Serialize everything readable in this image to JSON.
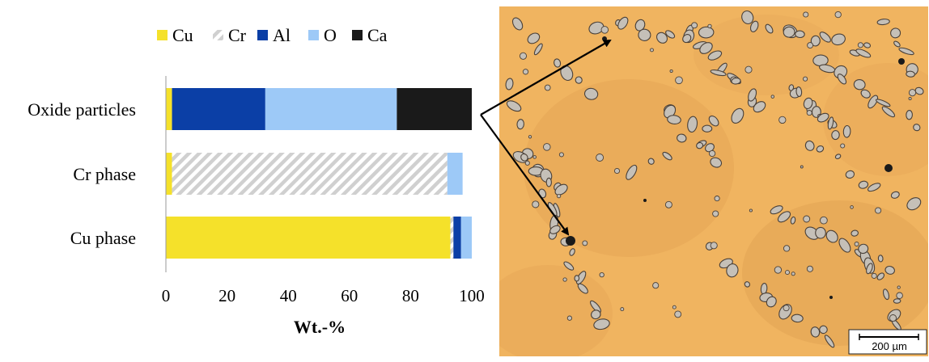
{
  "chart_data": {
    "type": "bar",
    "orientation": "horizontal",
    "stacked": true,
    "categories": [
      "Oxide particles",
      "Cr phase",
      "Cu phase"
    ],
    "series": [
      {
        "name": "Cu",
        "color": "#f5e12a",
        "pattern": "solid",
        "values": [
          2,
          2,
          93
        ]
      },
      {
        "name": "Cr",
        "color": "#d0d0d0",
        "pattern": "diagonal-hatch",
        "values": [
          0,
          90,
          1
        ]
      },
      {
        "name": "Al",
        "color": "#0b3fa6",
        "pattern": "solid",
        "values": [
          30.5,
          0,
          2.5
        ]
      },
      {
        "name": "O",
        "color": "#9dc9f7",
        "pattern": "solid",
        "values": [
          43,
          5,
          3.5
        ]
      },
      {
        "name": "Ca",
        "color": "#1a1a1a",
        "pattern": "solid",
        "values": [
          24.5,
          0,
          0
        ]
      }
    ],
    "xlabel": "Wt.-%",
    "ylabel": "",
    "xlim": [
      0,
      100
    ],
    "xticks": [
      "0",
      "20",
      "40",
      "60",
      "80",
      "100"
    ],
    "grid": false,
    "legend_position": "top"
  },
  "micrograph": {
    "scale_bar_label": "200 µm",
    "background_color": "#f0b460",
    "phase_color": "#c5c0b8",
    "outline_color": "#4a4038"
  }
}
